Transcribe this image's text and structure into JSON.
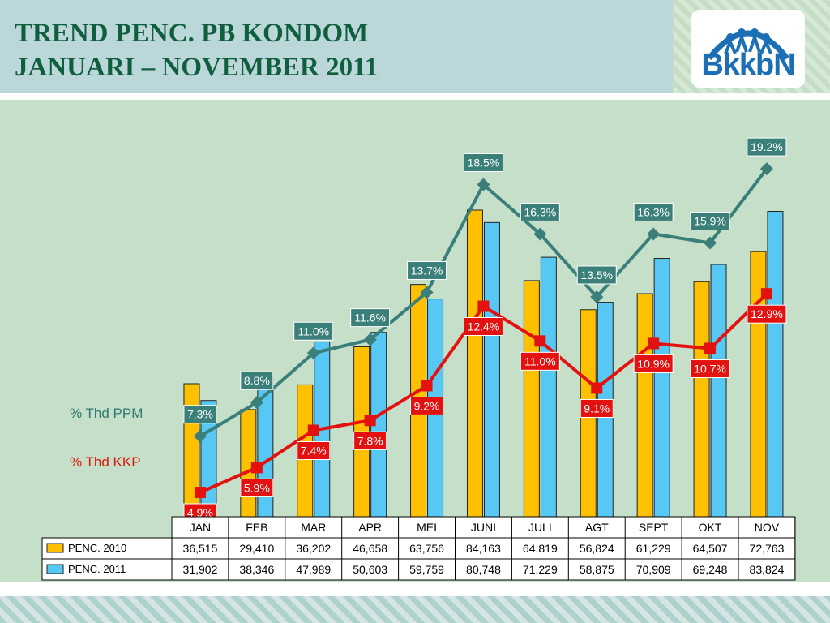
{
  "header": {
    "title_line1": "TREND PENC. PB KONDOM",
    "title_line2": "JANUARI – NOVEMBER 2011",
    "logo_text": "BkkbN"
  },
  "legend": {
    "ppm_label": "% Thd PPM",
    "kkp_label": "% Thd KKP"
  },
  "colors": {
    "penc_2010": "#ffc000",
    "penc_2011": "#56c8f3",
    "ppm_line": "#3a7f7a",
    "kkp_line": "#e3110f",
    "title": "#0f5f3e"
  },
  "chart_data": {
    "type": "bar",
    "categories": [
      "JAN",
      "FEB",
      "MAR",
      "APR",
      "MEI",
      "JUNI",
      "JULI",
      "AGT",
      "SEPT",
      "OKT",
      "NOV"
    ],
    "series": [
      {
        "name": "PENC. 2010",
        "values": [
          36515,
          29410,
          36202,
          46658,
          63756,
          84163,
          64819,
          56824,
          61229,
          64507,
          72763
        ],
        "labels": [
          "36,515",
          "29,410",
          "36,202",
          "46,658",
          "63,756",
          "84,163",
          "64,819",
          "56,824",
          "61,229",
          "64,507",
          "72,763"
        ]
      },
      {
        "name": "PENC. 2011",
        "values": [
          31902,
          38346,
          47989,
          50603,
          59759,
          80748,
          71229,
          58875,
          70909,
          69248,
          83824
        ],
        "labels": [
          "31,902",
          "38,346",
          "47,989",
          "50,603",
          "59,759",
          "80,748",
          "71,229",
          "58,875",
          "70,909",
          "69,248",
          "83,824"
        ]
      }
    ],
    "lines": [
      {
        "name": "% Thd PPM",
        "values": [
          7.3,
          8.8,
          11.0,
          11.6,
          13.7,
          18.5,
          16.3,
          13.5,
          16.3,
          15.9,
          19.2
        ],
        "labels": [
          "7.3%",
          "8.8%",
          "11.0%",
          "11.6%",
          "13.7%",
          "18.5%",
          "16.3%",
          "13.5%",
          "16.3%",
          "15.9%",
          "19.2%"
        ]
      },
      {
        "name": "% Thd KKP",
        "values": [
          4.9,
          5.9,
          7.4,
          7.8,
          9.2,
          12.4,
          11.0,
          9.1,
          10.9,
          10.7,
          12.9
        ],
        "labels": [
          "4.9%",
          "5.9%",
          "7.4%",
          "7.8%",
          "9.2%",
          "12.4%",
          "11.0%",
          "9.1%",
          "10.9%",
          "10.7%",
          "12.9%"
        ]
      }
    ],
    "title": "",
    "grid": false,
    "data_table": true
  }
}
